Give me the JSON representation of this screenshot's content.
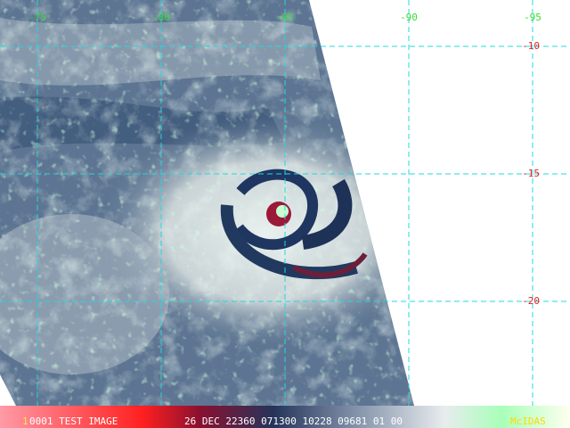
{
  "map": {
    "longitude_labels": [
      "-75",
      "-80",
      "-85",
      "-90",
      "-95"
    ],
    "latitude_labels": [
      "-10",
      "-15",
      "-20"
    ],
    "status_bar": {
      "frame": "1",
      "image_name": "0001 TEST IMAGE",
      "info": "26 DEC 22360 071300 10228 09681 01 00",
      "brand": "McIDAS"
    }
  }
}
